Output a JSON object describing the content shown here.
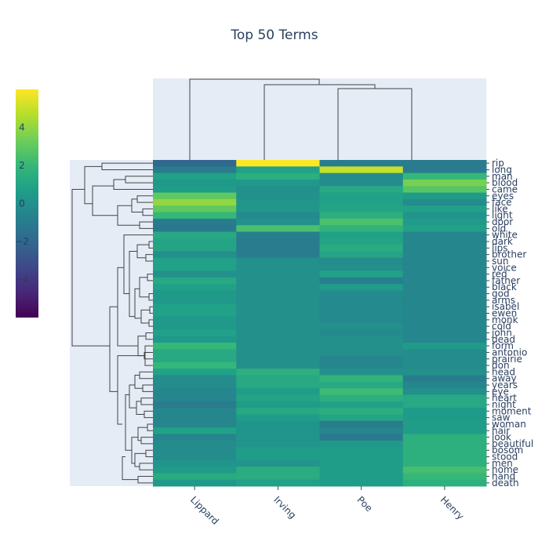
{
  "chart_data": {
    "type": "heatmap",
    "title": "Top 50 Terms",
    "columns": [
      "Lippard",
      "Irving",
      "Poe",
      "Henry"
    ],
    "rows": [
      "rip",
      "long",
      "man",
      "blood",
      "came",
      "eyes",
      "face",
      "like",
      "light",
      "door",
      "old",
      "white",
      "dark",
      "lips",
      "brother",
      "sun",
      "voice",
      "red",
      "father",
      "black",
      "god",
      "arms",
      "isabel",
      "ewen",
      "monk",
      "cold",
      "john",
      "dead",
      "form",
      "antonio",
      "prairie",
      "don",
      "head",
      "away",
      "years",
      "eye",
      "heart",
      "night",
      "moment",
      "saw",
      "woman",
      "hair",
      "look",
      "beautiful",
      "bosom",
      "stood",
      "men",
      "home",
      "hand",
      "death"
    ],
    "values": [
      [
        -2,
        6,
        -1,
        -1
      ],
      [
        -1,
        0.8,
        5,
        -1
      ],
      [
        0.8,
        1.5,
        -0.2,
        2
      ],
      [
        0.4,
        0.4,
        -0.2,
        3.5
      ],
      [
        0.6,
        0,
        1.2,
        2.8
      ],
      [
        3,
        0,
        0.8,
        0.5
      ],
      [
        4,
        0.3,
        0.8,
        -0.2
      ],
      [
        3,
        0.3,
        1,
        0.8
      ],
      [
        2,
        -0.3,
        1.5,
        0.2
      ],
      [
        -1,
        0,
        2.5,
        0.5
      ],
      [
        -1.2,
        2.5,
        1.8,
        0.8
      ],
      [
        1.2,
        -0.8,
        0.8,
        -0.5
      ],
      [
        1,
        -1,
        1,
        -0.5
      ],
      [
        1,
        -1,
        1.4,
        -0.5
      ],
      [
        0,
        -1,
        1,
        -0.5
      ],
      [
        0.8,
        0,
        -0.2,
        -0.5
      ],
      [
        0.8,
        0,
        0,
        -0.5
      ],
      [
        0,
        0,
        0.8,
        -0.5
      ],
      [
        1.2,
        0,
        -0.8,
        -0.5
      ],
      [
        0.8,
        0,
        0.6,
        -0.5
      ],
      [
        0.4,
        0,
        -0.3,
        -0.5
      ],
      [
        0.4,
        0,
        -0.3,
        -0.5
      ],
      [
        0.8,
        0,
        -0.3,
        -0.5
      ],
      [
        0.8,
        0,
        -0.3,
        -0.5
      ],
      [
        0.4,
        0,
        -0.3,
        -0.5
      ],
      [
        0.4,
        0,
        0,
        -0.5
      ],
      [
        0.8,
        0,
        -0.3,
        -0.5
      ],
      [
        0.4,
        0,
        0,
        -0.5
      ],
      [
        2,
        0,
        0,
        0.5
      ],
      [
        1.2,
        0,
        0,
        -0.2
      ],
      [
        1.2,
        0,
        -0.5,
        -0.2
      ],
      [
        2,
        0,
        -0.5,
        -0.2
      ],
      [
        0.8,
        1.6,
        0,
        0
      ],
      [
        -0.2,
        1.2,
        1.8,
        -1
      ],
      [
        -0.2,
        1.2,
        1.2,
        -0.5
      ],
      [
        -0.5,
        0.6,
        2.2,
        0
      ],
      [
        -0.5,
        1,
        1.5,
        1.2
      ],
      [
        -1,
        0.6,
        0.8,
        1.2
      ],
      [
        -0.5,
        1.2,
        1.5,
        0.5
      ],
      [
        -0.5,
        0.6,
        1,
        0.5
      ],
      [
        -0.5,
        0.2,
        -1,
        0.6
      ],
      [
        0.8,
        0.2,
        -0.5,
        0.6
      ],
      [
        -0.5,
        0.2,
        -1.2,
        1.6
      ],
      [
        -0.2,
        0.2,
        0.4,
        1.6
      ],
      [
        -0.2,
        0.6,
        0.6,
        1.6
      ],
      [
        -0.2,
        0.6,
        0.6,
        1.6
      ],
      [
        0.2,
        0.2,
        0.6,
        1.6
      ],
      [
        0.5,
        1.4,
        0.6,
        2.4
      ],
      [
        1.3,
        1.4,
        0.6,
        2
      ],
      [
        0.4,
        0.8,
        0.6,
        1.6
      ]
    ],
    "colorbar": {
      "ticks": [
        4,
        2,
        0,
        -2,
        -4
      ],
      "range": [
        -6,
        6
      ]
    },
    "colorscale": [
      "#440154",
      "#482878",
      "#3e4989",
      "#31688e",
      "#26828e",
      "#1f9e89",
      "#35b779",
      "#6ece58",
      "#b5de2b",
      "#fde725"
    ],
    "background": "#e5ecf6"
  }
}
